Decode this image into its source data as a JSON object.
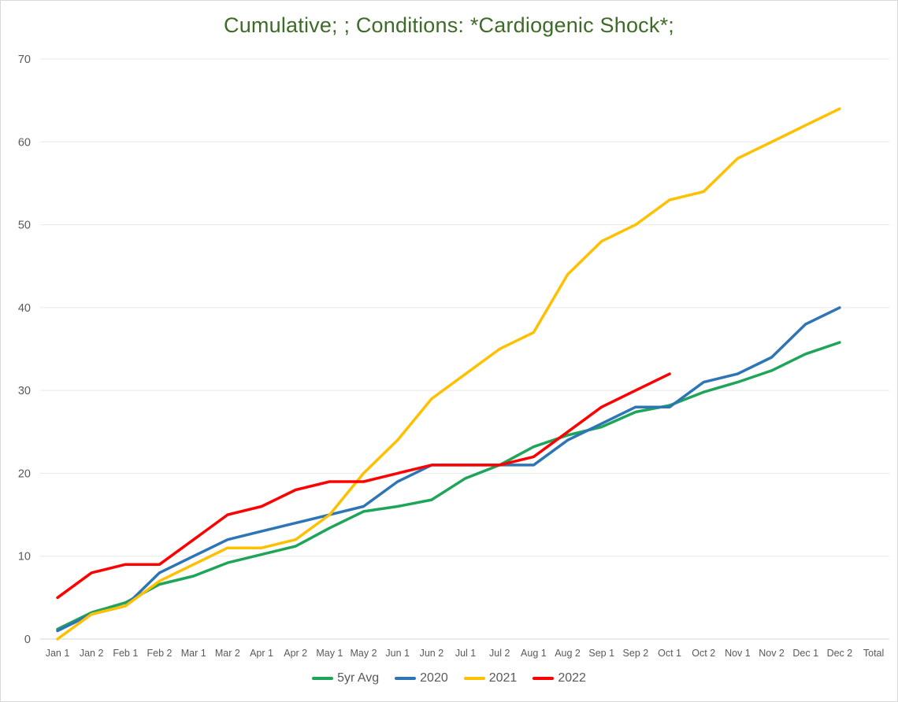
{
  "chart": {
    "title": "Cumulative; ; Conditions: *Cardiogenic Shock*;",
    "title_color": "#3E6B28",
    "axis_label_color": "#595959",
    "gridline_color": "#E8E8E8",
    "baseline_color": "#D6D6D6"
  },
  "chart_data": {
    "type": "line",
    "title": "Cumulative; ; Conditions: *Cardiogenic Shock*;",
    "xlabel": "",
    "ylabel": "",
    "ylim": [
      0,
      70
    ],
    "ytick_step": 10,
    "grid": true,
    "legend_position": "bottom",
    "categories": [
      "Jan 1",
      "Jan 2",
      "Feb 1",
      "Feb 2",
      "Mar 1",
      "Mar 2",
      "Apr 1",
      "Apr 2",
      "May 1",
      "May 2",
      "Jun 1",
      "Jun 2",
      "Jul 1",
      "Jul 2",
      "Aug 1",
      "Aug 2",
      "Sep 1",
      "Sep 2",
      "Oct 1",
      "Oct 2",
      "Nov 1",
      "Nov 2",
      "Dec 1",
      "Dec 2",
      "Total"
    ],
    "series": [
      {
        "name": "5yr Avg",
        "color": "#1EA559",
        "values": [
          1.2,
          3.2,
          4.4,
          6.6,
          7.6,
          9.2,
          10.2,
          11.2,
          13.4,
          15.4,
          16,
          16.8,
          19.4,
          21,
          23.2,
          24.6,
          25.6,
          27.4,
          28.2,
          29.8,
          31,
          32.4,
          34.4,
          35.8
        ]
      },
      {
        "name": "2020",
        "color": "#2E75B6",
        "values": [
          1,
          3,
          4,
          8,
          10,
          12,
          13,
          14,
          15,
          16,
          19,
          21,
          21,
          21,
          21,
          24,
          26,
          28,
          28,
          31,
          32,
          34,
          38,
          40
        ]
      },
      {
        "name": "2021",
        "color": "#FFC000",
        "values": [
          0,
          3,
          4,
          7,
          9,
          11,
          11,
          12,
          15,
          20,
          24,
          29,
          32,
          35,
          37,
          44,
          48,
          50,
          53,
          54,
          58,
          60,
          62,
          64
        ]
      },
      {
        "name": "2022",
        "color": "#FF0000",
        "values": [
          5,
          8,
          9,
          9,
          12,
          15,
          16,
          18,
          19,
          19,
          20,
          21,
          21,
          21,
          22,
          25,
          28,
          30,
          32
        ]
      }
    ]
  }
}
